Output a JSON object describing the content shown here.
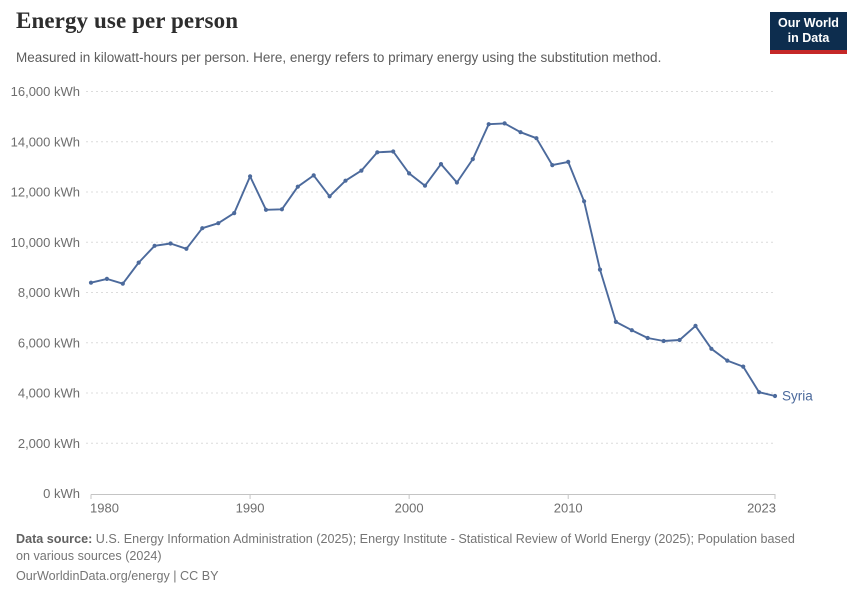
{
  "logo": {
    "line1": "Our World",
    "line2": "in Data",
    "bg_color": "#0d2d4e",
    "accent_color": "#c52828",
    "text_color": "#ffffff"
  },
  "chart_data": {
    "type": "line",
    "title": "Energy use per person",
    "subtitle": "Measured in kilowatt-hours per person. Here, energy refers to primary energy using the substitution method.",
    "unit_suffix": " kWh",
    "x": [
      1980,
      1981,
      1982,
      1983,
      1984,
      1985,
      1986,
      1987,
      1988,
      1989,
      1990,
      1991,
      1992,
      1993,
      1994,
      1995,
      1996,
      1997,
      1998,
      1999,
      2000,
      2001,
      2002,
      2003,
      2004,
      2005,
      2006,
      2007,
      2008,
      2009,
      2010,
      2011,
      2012,
      2013,
      2014,
      2015,
      2016,
      2017,
      2018,
      2019,
      2020,
      2021,
      2022,
      2023
    ],
    "series": [
      {
        "name": "Syria",
        "color": "#4c6a9c",
        "values": [
          8390,
          8540,
          8350,
          9190,
          9860,
          9950,
          9740,
          10560,
          10760,
          11160,
          12620,
          11290,
          11310,
          12210,
          12660,
          11830,
          12450,
          12850,
          13580,
          13610,
          12740,
          12250,
          13110,
          12380,
          13310,
          14700,
          14730,
          14380,
          14140,
          13070,
          13200,
          11630,
          8910,
          6830,
          6500,
          6190,
          6070,
          6110,
          6670,
          5760,
          5290,
          5050,
          4030,
          3880
        ]
      }
    ],
    "xlim": [
      1980,
      2023
    ],
    "ylim": [
      0,
      16000
    ],
    "x_ticks": [
      1980,
      1990,
      2000,
      2010,
      2023
    ],
    "y_ticks": [
      0,
      2000,
      4000,
      6000,
      8000,
      10000,
      12000,
      14000,
      16000
    ],
    "grid": "horizontal-dashed",
    "grid_color": "#dcdcdc",
    "axis_color": "#c4c4c4",
    "tick_label_color": "#6e6e6e",
    "legend_position": "end-of-line-label"
  },
  "footer": {
    "source_label": "Data source:",
    "source_line1": " U.S. Energy Information Administration (2025); Energy Institute - Statistical Review of World Energy (2025); Population based",
    "source_line2": "on various sources (2024)",
    "license": "OurWorldinData.org/energy | CC BY"
  }
}
